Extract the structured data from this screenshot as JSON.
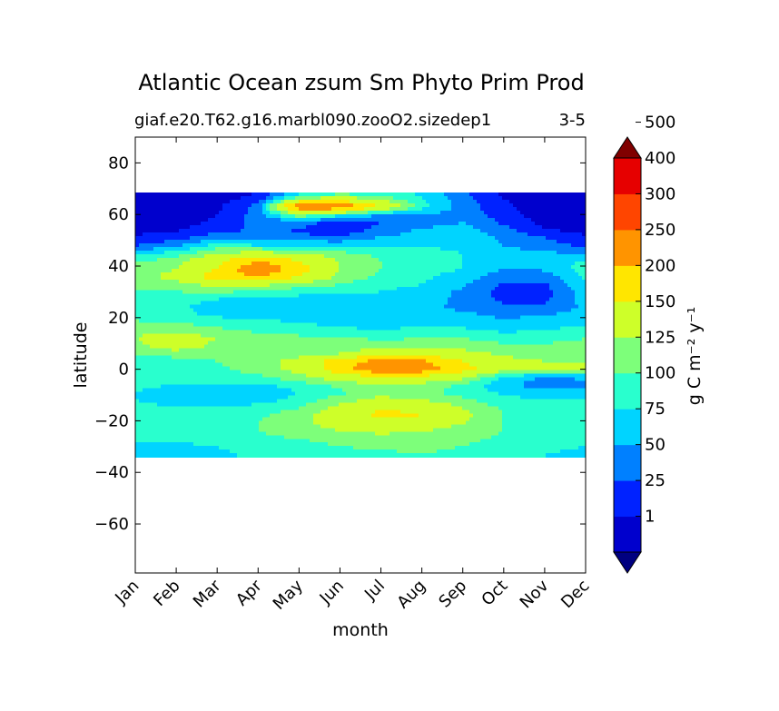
{
  "chart_data": {
    "type": "heatmap",
    "subtype": "filled-contour",
    "title": "Atlantic Ocean zsum Sm Phyto Prim Prod",
    "subtitle_left": "giaf.e20.T62.g16.marbl090.zooO2.sizedep1",
    "subtitle_right": "3-5",
    "xlabel": "month",
    "ylabel": "latitude",
    "x_ticklabels": [
      "Jan",
      "Feb",
      "Mar",
      "Apr",
      "May",
      "Jun",
      "Jul",
      "Aug",
      "Sep",
      "Oct",
      "Nov",
      "Dec"
    ],
    "y_ticks": [
      80,
      60,
      40,
      20,
      0,
      -20,
      -40,
      -60
    ],
    "y_ticklabels": [
      "80",
      "60",
      "40",
      "20",
      "0",
      "−20",
      "−40",
      "−60"
    ],
    "xlim": [
      0,
      11
    ],
    "ylim": [
      -79,
      90
    ],
    "data_lat_range": [
      -34,
      68.5
    ],
    "colorbar": {
      "label": "g C m⁻² y⁻¹",
      "levels": [
        1,
        25,
        50,
        75,
        100,
        125,
        150,
        200,
        250,
        300,
        400,
        500
      ],
      "ticklabels": [
        "1",
        "25",
        "50",
        "75",
        "100",
        "125",
        "150",
        "200",
        "250",
        "300",
        "400",
        "500"
      ],
      "colors": [
        "#000080",
        "#0000cd",
        "#0022ff",
        "#0080ff",
        "#00d4ff",
        "#29ffce",
        "#7dff7a",
        "#ceff29",
        "#ffe600",
        "#ff9400",
        "#ff4500",
        "#e60000",
        "#800000"
      ],
      "extend": "both"
    },
    "lats": [
      68.5,
      66,
      63,
      60,
      57,
      54,
      51,
      48,
      45,
      42,
      39,
      36,
      33,
      30,
      27,
      24,
      21,
      18,
      15,
      12,
      9,
      6,
      3,
      0,
      -3,
      -6,
      -9,
      -12,
      -15,
      -18,
      -21,
      -24,
      -27,
      -30,
      -33,
      -34
    ],
    "months": [
      0,
      1,
      2,
      3,
      4,
      5,
      6,
      7,
      8,
      9,
      10,
      11
    ],
    "values": [
      [
        5,
        5,
        10,
        25,
        85,
        110,
        110,
        95,
        55,
        20,
        5,
        5
      ],
      [
        5,
        5,
        15,
        35,
        150,
        170,
        140,
        100,
        60,
        25,
        8,
        5
      ],
      [
        5,
        8,
        20,
        60,
        300,
        300,
        200,
        110,
        65,
        30,
        10,
        5
      ],
      [
        8,
        10,
        25,
        60,
        150,
        110,
        75,
        70,
        70,
        35,
        12,
        8
      ],
      [
        10,
        15,
        30,
        60,
        60,
        40,
        50,
        60,
        75,
        45,
        18,
        10
      ],
      [
        15,
        22,
        40,
        55,
        48,
        40,
        55,
        80,
        85,
        60,
        28,
        15
      ],
      [
        30,
        40,
        70,
        60,
        55,
        50,
        80,
        85,
        90,
        70,
        50,
        30
      ],
      [
        50,
        70,
        110,
        100,
        100,
        100,
        100,
        100,
        90,
        75,
        60,
        45
      ],
      [
        90,
        110,
        150,
        160,
        150,
        130,
        120,
        110,
        100,
        85,
        80,
        70
      ],
      [
        120,
        140,
        190,
        250,
        200,
        150,
        125,
        110,
        100,
        90,
        95,
        100
      ],
      [
        135,
        150,
        200,
        300,
        220,
        150,
        125,
        110,
        100,
        75,
        80,
        110
      ],
      [
        140,
        160,
        230,
        250,
        200,
        140,
        120,
        105,
        90,
        60,
        60,
        105
      ],
      [
        130,
        140,
        160,
        160,
        140,
        125,
        110,
        100,
        80,
        45,
        45,
        100
      ],
      [
        125,
        125,
        130,
        120,
        110,
        110,
        100,
        90,
        70,
        40,
        40,
        90
      ],
      [
        120,
        110,
        100,
        90,
        90,
        90,
        90,
        85,
        70,
        45,
        45,
        85
      ],
      [
        110,
        105,
        90,
        75,
        75,
        80,
        80,
        80,
        70,
        55,
        55,
        80
      ],
      [
        110,
        105,
        95,
        85,
        80,
        80,
        85,
        85,
        80,
        70,
        75,
        85
      ],
      [
        130,
        125,
        115,
        110,
        100,
        90,
        80,
        95,
        90,
        80,
        85,
        95
      ],
      [
        145,
        140,
        130,
        120,
        115,
        110,
        100,
        110,
        105,
        95,
        100,
        110
      ],
      [
        150,
        170,
        150,
        140,
        130,
        130,
        120,
        125,
        125,
        115,
        115,
        125
      ],
      [
        140,
        175,
        140,
        135,
        130,
        130,
        140,
        140,
        140,
        130,
        130,
        135
      ],
      [
        125,
        130,
        130,
        130,
        140,
        150,
        180,
        180,
        160,
        145,
        140,
        140
      ],
      [
        120,
        120,
        125,
        140,
        160,
        230,
        270,
        260,
        200,
        160,
        150,
        150
      ],
      [
        115,
        115,
        120,
        135,
        160,
        230,
        290,
        280,
        220,
        165,
        155,
        150
      ],
      [
        110,
        110,
        115,
        120,
        140,
        170,
        200,
        190,
        160,
        100,
        70,
        80
      ],
      [
        105,
        100,
        100,
        95,
        115,
        130,
        150,
        140,
        120,
        80,
        60,
        70
      ],
      [
        100,
        90,
        80,
        75,
        100,
        120,
        140,
        130,
        115,
        95,
        85,
        90
      ],
      [
        100,
        95,
        85,
        90,
        110,
        140,
        160,
        150,
        130,
        110,
        100,
        100
      ],
      [
        105,
        100,
        100,
        110,
        125,
        160,
        200,
        190,
        150,
        120,
        110,
        105
      ],
      [
        110,
        105,
        110,
        120,
        140,
        170,
        210,
        200,
        160,
        125,
        115,
        110
      ],
      [
        115,
        110,
        115,
        125,
        145,
        160,
        170,
        165,
        150,
        125,
        115,
        110
      ],
      [
        110,
        110,
        115,
        125,
        140,
        150,
        155,
        150,
        140,
        125,
        115,
        110
      ],
      [
        105,
        105,
        110,
        115,
        125,
        135,
        140,
        140,
        130,
        120,
        110,
        105
      ],
      [
        95,
        95,
        100,
        110,
        115,
        125,
        130,
        130,
        125,
        115,
        105,
        100
      ],
      [
        90,
        90,
        95,
        105,
        110,
        115,
        120,
        125,
        120,
        110,
        100,
        95
      ],
      [
        90,
        90,
        95,
        105,
        110,
        115,
        120,
        125,
        120,
        110,
        100,
        95
      ]
    ]
  }
}
